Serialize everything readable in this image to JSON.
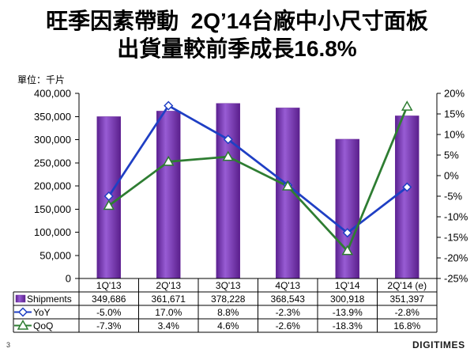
{
  "page_number": "3",
  "logo_text": "DIGITIMES",
  "chart_data": {
    "type": "bar",
    "title": [
      "旺季因素帶動  2Q’14台廠中小尺寸面板",
      "出貨量較前季成長16.8%"
    ],
    "categories": [
      "1Q'13",
      "2Q'13",
      "3Q'13",
      "4Q'13",
      "1Q'14",
      "2Q'14 (e)"
    ],
    "y_left": {
      "label": "單位：千片",
      "min": 0,
      "max": 400000,
      "step": 50000,
      "tick_labels": [
        "0",
        "50,000",
        "100,000",
        "150,000",
        "200,000",
        "250,000",
        "300,000",
        "350,000",
        "400,000"
      ]
    },
    "y_right": {
      "min": -25,
      "max": 20,
      "step": 5,
      "tick_labels": [
        "-25%",
        "-20%",
        "-15%",
        "-10%",
        "-5%",
        "0%",
        "5%",
        "10%",
        "15%",
        "20%"
      ]
    },
    "series": [
      {
        "name": "Shipments",
        "type": "bar",
        "axis": "left",
        "color": "#7030a0",
        "values": [
          349686,
          361671,
          378228,
          368543,
          300918,
          351397
        ],
        "labels": [
          "349,686",
          "361,671",
          "378,228",
          "368,543",
          "300,918",
          "351,397"
        ]
      },
      {
        "name": "YoY",
        "type": "line",
        "axis": "right",
        "marker": "diamond",
        "color": "#1f3fc4",
        "values": [
          -5.0,
          17.0,
          8.8,
          -2.3,
          -13.9,
          -2.8
        ],
        "labels": [
          "-5.0%",
          "17.0%",
          "8.8%",
          "-2.3%",
          "-13.9%",
          "-2.8%"
        ]
      },
      {
        "name": "QoQ",
        "type": "line",
        "axis": "right",
        "marker": "triangle",
        "color": "#2e7d32",
        "values": [
          -7.3,
          3.4,
          4.6,
          -2.6,
          -18.3,
          16.8
        ],
        "labels": [
          "-7.3%",
          "3.4%",
          "4.6%",
          "-2.6%",
          "-18.3%",
          "16.8%"
        ]
      }
    ],
    "grid": false,
    "data_table": true,
    "legend": "bottom-left"
  }
}
